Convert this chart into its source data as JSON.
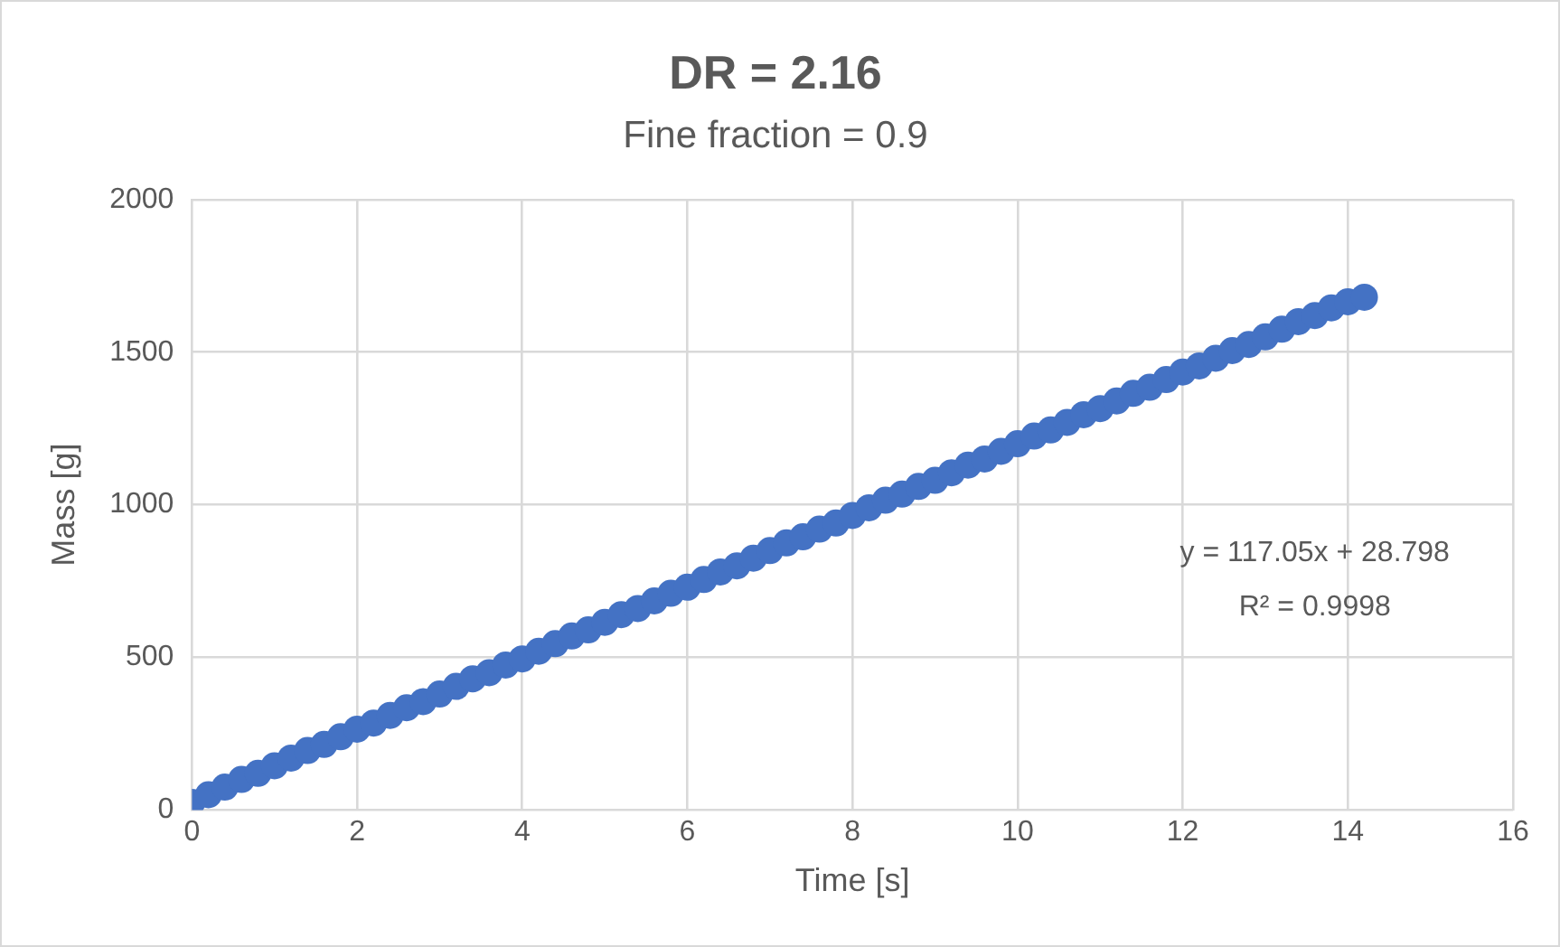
{
  "chart_data": {
    "type": "scatter",
    "title": "DR = 2.16",
    "subtitle": "Fine fraction = 0.9",
    "xlabel": "Time [s]",
    "ylabel": "Mass [g]",
    "x": [
      0,
      0.2,
      0.4,
      0.6,
      0.8,
      1.0,
      1.2,
      1.4,
      1.6,
      1.8,
      2.0,
      2.2,
      2.4,
      2.6,
      2.8,
      3.0,
      3.2,
      3.4,
      3.6,
      3.8,
      4.0,
      4.2,
      4.4,
      4.6,
      4.8,
      5.0,
      5.2,
      5.4,
      5.6,
      5.8,
      6.0,
      6.2,
      6.4,
      6.6,
      6.8,
      7.0,
      7.2,
      7.4,
      7.6,
      7.8,
      8.0,
      8.2,
      8.4,
      8.6,
      8.8,
      9.0,
      9.2,
      9.4,
      9.6,
      9.8,
      10.0,
      10.2,
      10.4,
      10.6,
      10.8,
      11.0,
      11.2,
      11.4,
      11.6,
      11.8,
      12.0,
      12.2,
      12.4,
      12.6,
      12.8,
      13.0,
      13.2,
      13.4,
      13.6,
      13.8,
      14.0,
      14.2
    ],
    "series": [
      {
        "color": "#4472c4",
        "values": [
          25,
          50,
          75,
          100,
          120,
          145,
          170,
          195,
          215,
          240,
          265,
          285,
          310,
          335,
          355,
          380,
          405,
          430,
          450,
          475,
          495,
          520,
          545,
          570,
          590,
          615,
          640,
          660,
          685,
          710,
          730,
          755,
          780,
          800,
          825,
          850,
          875,
          895,
          920,
          940,
          965,
          990,
          1015,
          1035,
          1060,
          1080,
          1105,
          1130,
          1150,
          1175,
          1200,
          1225,
          1245,
          1270,
          1295,
          1315,
          1340,
          1365,
          1385,
          1410,
          1435,
          1455,
          1480,
          1505,
          1525,
          1550,
          1575,
          1600,
          1620,
          1645,
          1665,
          1680
        ]
      }
    ],
    "xlim": [
      0,
      16
    ],
    "xticks": [
      0,
      2,
      4,
      6,
      8,
      10,
      12,
      14,
      16
    ],
    "ylim": [
      0,
      2000
    ],
    "yticks": [
      0,
      500,
      1000,
      1500,
      2000
    ],
    "annotations": [
      "y = 117.05x + 28.798",
      "R² = 0.9998"
    ],
    "grid": true,
    "legend": false,
    "marker": "circle"
  }
}
